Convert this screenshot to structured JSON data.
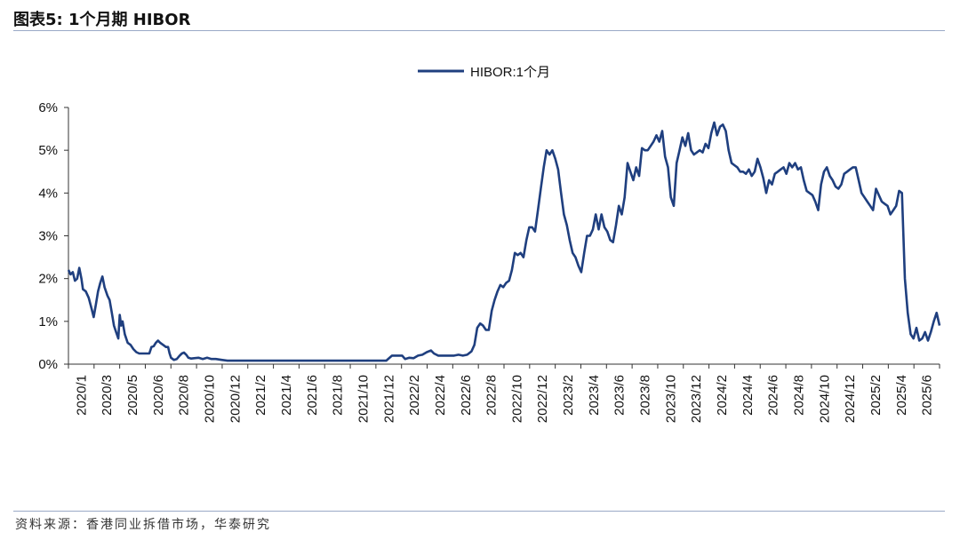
{
  "header": {
    "title": "图表5:  1个月期 HIBOR"
  },
  "footer": {
    "source": "资料来源：香港同业拆借市场，华泰研究"
  },
  "chart_data": {
    "type": "line",
    "title": "",
    "xlabel": "",
    "ylabel": "",
    "ylim": [
      0,
      6
    ],
    "y_ticks": [
      "0%",
      "1%",
      "2%",
      "3%",
      "4%",
      "5%",
      "6%"
    ],
    "x_ticks": [
      "2020/1",
      "2020/3",
      "2020/5",
      "2020/6",
      "2020/8",
      "2020/10",
      "2020/12",
      "2021/2",
      "2021/4",
      "2021/6",
      "2021/8",
      "2021/10",
      "2021/12",
      "2022/2",
      "2022/4",
      "2022/6",
      "2022/8",
      "2022/10",
      "2022/12",
      "2023/2",
      "2023/4",
      "2023/6",
      "2023/8",
      "2023/10",
      "2023/12",
      "2024/2",
      "2024/4",
      "2024/6",
      "2024/8",
      "2024/10",
      "2024/12",
      "2025/2",
      "2025/4",
      "2025/6"
    ],
    "legend": {
      "position": "top-center",
      "entries": [
        "HIBOR:1个月"
      ]
    },
    "grid": false,
    "colors": {
      "line": "#1f3f7f",
      "axis": "#333333"
    },
    "series": [
      {
        "name": "HIBOR:1个月",
        "x_unit": "months since 2020/1",
        "points": [
          [
            0,
            2.2
          ],
          [
            0.15,
            2.1
          ],
          [
            0.3,
            2.15
          ],
          [
            0.45,
            1.95
          ],
          [
            0.6,
            2.0
          ],
          [
            0.75,
            2.25
          ],
          [
            0.9,
            2.0
          ],
          [
            1.0,
            1.75
          ],
          [
            1.2,
            1.7
          ],
          [
            1.4,
            1.55
          ],
          [
            1.6,
            1.3
          ],
          [
            1.75,
            1.1
          ],
          [
            1.9,
            1.4
          ],
          [
            2.05,
            1.7
          ],
          [
            2.2,
            1.9
          ],
          [
            2.35,
            2.05
          ],
          [
            2.5,
            1.8
          ],
          [
            2.7,
            1.6
          ],
          [
            2.85,
            1.5
          ],
          [
            3.0,
            1.2
          ],
          [
            3.15,
            0.9
          ],
          [
            3.3,
            0.75
          ],
          [
            3.45,
            0.6
          ],
          [
            3.55,
            1.15
          ],
          [
            3.65,
            0.9
          ],
          [
            3.75,
            1.0
          ],
          [
            3.9,
            0.7
          ],
          [
            4.1,
            0.5
          ],
          [
            4.3,
            0.45
          ],
          [
            4.5,
            0.35
          ],
          [
            4.7,
            0.28
          ],
          [
            4.9,
            0.25
          ],
          [
            5.1,
            0.25
          ],
          [
            5.4,
            0.25
          ],
          [
            5.6,
            0.25
          ],
          [
            5.75,
            0.4
          ],
          [
            5.9,
            0.42
          ],
          [
            6.05,
            0.5
          ],
          [
            6.2,
            0.55
          ],
          [
            6.35,
            0.5
          ],
          [
            6.55,
            0.45
          ],
          [
            6.75,
            0.4
          ],
          [
            6.9,
            0.4
          ],
          [
            7.0,
            0.25
          ],
          [
            7.1,
            0.15
          ],
          [
            7.3,
            0.1
          ],
          [
            7.5,
            0.12
          ],
          [
            7.7,
            0.2
          ],
          [
            7.85,
            0.25
          ],
          [
            8.0,
            0.27
          ],
          [
            8.15,
            0.22
          ],
          [
            8.3,
            0.15
          ],
          [
            8.5,
            0.13
          ],
          [
            8.7,
            0.14
          ],
          [
            9.0,
            0.15
          ],
          [
            9.3,
            0.12
          ],
          [
            9.6,
            0.15
          ],
          [
            9.9,
            0.12
          ],
          [
            10.2,
            0.12
          ],
          [
            10.6,
            0.1
          ],
          [
            11.0,
            0.08
          ],
          [
            11.5,
            0.08
          ],
          [
            12.0,
            0.08
          ],
          [
            12.5,
            0.08
          ],
          [
            13.0,
            0.08
          ],
          [
            13.5,
            0.08
          ],
          [
            14.0,
            0.08
          ],
          [
            14.5,
            0.08
          ],
          [
            15.0,
            0.08
          ],
          [
            15.5,
            0.08
          ],
          [
            16.0,
            0.08
          ],
          [
            16.5,
            0.08
          ],
          [
            17.0,
            0.08
          ],
          [
            17.5,
            0.08
          ],
          [
            18.0,
            0.08
          ],
          [
            18.5,
            0.08
          ],
          [
            19.0,
            0.08
          ],
          [
            19.5,
            0.08
          ],
          [
            20.0,
            0.08
          ],
          [
            20.5,
            0.08
          ],
          [
            21.0,
            0.08
          ],
          [
            21.5,
            0.08
          ],
          [
            22.0,
            0.08
          ],
          [
            22.4,
            0.2
          ],
          [
            22.8,
            0.2
          ],
          [
            23.1,
            0.2
          ],
          [
            23.3,
            0.12
          ],
          [
            23.6,
            0.15
          ],
          [
            23.9,
            0.14
          ],
          [
            24.2,
            0.2
          ],
          [
            24.5,
            0.22
          ],
          [
            24.8,
            0.28
          ],
          [
            25.1,
            0.32
          ],
          [
            25.3,
            0.25
          ],
          [
            25.6,
            0.2
          ],
          [
            26.0,
            0.2
          ],
          [
            26.4,
            0.2
          ],
          [
            26.7,
            0.2
          ],
          [
            27.0,
            0.22
          ],
          [
            27.3,
            0.2
          ],
          [
            27.6,
            0.22
          ],
          [
            27.9,
            0.3
          ],
          [
            28.1,
            0.45
          ],
          [
            28.3,
            0.85
          ],
          [
            28.5,
            0.95
          ],
          [
            28.7,
            0.9
          ],
          [
            28.9,
            0.8
          ],
          [
            29.1,
            0.8
          ],
          [
            29.3,
            1.25
          ],
          [
            29.5,
            1.5
          ],
          [
            29.7,
            1.7
          ],
          [
            29.9,
            1.85
          ],
          [
            30.1,
            1.8
          ],
          [
            30.3,
            1.9
          ],
          [
            30.5,
            1.95
          ],
          [
            30.7,
            2.2
          ],
          [
            30.9,
            2.6
          ],
          [
            31.1,
            2.55
          ],
          [
            31.3,
            2.6
          ],
          [
            31.5,
            2.5
          ],
          [
            31.7,
            2.9
          ],
          [
            31.9,
            3.2
          ],
          [
            32.1,
            3.2
          ],
          [
            32.3,
            3.1
          ],
          [
            32.5,
            3.6
          ],
          [
            32.7,
            4.1
          ],
          [
            32.9,
            4.6
          ],
          [
            33.1,
            5.0
          ],
          [
            33.3,
            4.9
          ],
          [
            33.5,
            5.0
          ],
          [
            33.7,
            4.8
          ],
          [
            33.9,
            4.55
          ],
          [
            34.1,
            4.0
          ],
          [
            34.3,
            3.5
          ],
          [
            34.5,
            3.25
          ],
          [
            34.7,
            2.9
          ],
          [
            34.9,
            2.6
          ],
          [
            35.1,
            2.5
          ],
          [
            35.3,
            2.3
          ],
          [
            35.5,
            2.15
          ],
          [
            35.7,
            2.6
          ],
          [
            35.9,
            3.0
          ],
          [
            36.1,
            3.0
          ],
          [
            36.3,
            3.15
          ],
          [
            36.5,
            3.5
          ],
          [
            36.7,
            3.15
          ],
          [
            36.9,
            3.5
          ],
          [
            37.1,
            3.2
          ],
          [
            37.3,
            3.1
          ],
          [
            37.5,
            2.9
          ],
          [
            37.7,
            2.85
          ],
          [
            37.9,
            3.25
          ],
          [
            38.1,
            3.7
          ],
          [
            38.3,
            3.5
          ],
          [
            38.5,
            3.9
          ],
          [
            38.7,
            4.7
          ],
          [
            38.9,
            4.5
          ],
          [
            39.1,
            4.3
          ],
          [
            39.3,
            4.6
          ],
          [
            39.5,
            4.4
          ],
          [
            39.7,
            5.05
          ],
          [
            39.9,
            5.0
          ],
          [
            40.1,
            5.0
          ],
          [
            40.3,
            5.1
          ],
          [
            40.5,
            5.2
          ],
          [
            40.7,
            5.35
          ],
          [
            40.9,
            5.2
          ],
          [
            41.1,
            5.45
          ],
          [
            41.3,
            4.85
          ],
          [
            41.5,
            4.6
          ],
          [
            41.7,
            3.9
          ],
          [
            41.9,
            3.7
          ],
          [
            42.1,
            4.7
          ],
          [
            42.3,
            5.0
          ],
          [
            42.5,
            5.3
          ],
          [
            42.7,
            5.1
          ],
          [
            42.9,
            5.4
          ],
          [
            43.1,
            5.0
          ],
          [
            43.3,
            4.9
          ],
          [
            43.5,
            4.95
          ],
          [
            43.7,
            5.0
          ],
          [
            43.9,
            4.95
          ],
          [
            44.1,
            5.15
          ],
          [
            44.3,
            5.05
          ],
          [
            44.5,
            5.4
          ],
          [
            44.7,
            5.65
          ],
          [
            44.9,
            5.35
          ],
          [
            45.1,
            5.55
          ],
          [
            45.3,
            5.6
          ],
          [
            45.5,
            5.45
          ],
          [
            45.7,
            5.0
          ],
          [
            45.9,
            4.7
          ],
          [
            46.1,
            4.65
          ],
          [
            46.3,
            4.6
          ],
          [
            46.5,
            4.5
          ],
          [
            46.7,
            4.5
          ],
          [
            46.9,
            4.45
          ],
          [
            47.1,
            4.55
          ],
          [
            47.3,
            4.4
          ],
          [
            47.5,
            4.5
          ],
          [
            47.7,
            4.8
          ],
          [
            47.9,
            4.6
          ],
          [
            48.1,
            4.35
          ],
          [
            48.3,
            4.0
          ],
          [
            48.5,
            4.3
          ],
          [
            48.7,
            4.2
          ],
          [
            48.9,
            4.45
          ],
          [
            49.1,
            4.5
          ],
          [
            49.3,
            4.55
          ],
          [
            49.5,
            4.6
          ],
          [
            49.7,
            4.45
          ],
          [
            49.9,
            4.7
          ],
          [
            50.1,
            4.6
          ],
          [
            50.3,
            4.7
          ],
          [
            50.5,
            4.55
          ],
          [
            50.7,
            4.6
          ],
          [
            50.9,
            4.3
          ],
          [
            51.1,
            4.05
          ],
          [
            51.3,
            4.0
          ],
          [
            51.5,
            3.95
          ],
          [
            51.7,
            3.8
          ],
          [
            51.9,
            3.6
          ],
          [
            52.1,
            4.2
          ],
          [
            52.3,
            4.5
          ],
          [
            52.5,
            4.6
          ],
          [
            52.7,
            4.4
          ],
          [
            52.9,
            4.3
          ],
          [
            53.1,
            4.15
          ],
          [
            53.3,
            4.1
          ],
          [
            53.5,
            4.2
          ],
          [
            53.7,
            4.45
          ],
          [
            53.9,
            4.5
          ],
          [
            54.1,
            4.55
          ],
          [
            54.3,
            4.6
          ],
          [
            54.5,
            4.6
          ],
          [
            54.7,
            4.3
          ],
          [
            54.9,
            4.0
          ],
          [
            55.1,
            3.9
          ],
          [
            55.3,
            3.8
          ],
          [
            55.5,
            3.7
          ],
          [
            55.7,
            3.6
          ],
          [
            55.9,
            4.1
          ],
          [
            56.1,
            3.95
          ],
          [
            56.3,
            3.8
          ],
          [
            56.5,
            3.75
          ],
          [
            56.7,
            3.7
          ],
          [
            56.9,
            3.5
          ],
          [
            57.1,
            3.6
          ],
          [
            57.3,
            3.7
          ],
          [
            57.5,
            4.05
          ],
          [
            57.7,
            4.0
          ],
          [
            57.9,
            2.0
          ],
          [
            58.1,
            1.2
          ],
          [
            58.3,
            0.7
          ],
          [
            58.5,
            0.6
          ],
          [
            58.7,
            0.85
          ],
          [
            58.9,
            0.55
          ],
          [
            59.1,
            0.6
          ],
          [
            59.3,
            0.75
          ],
          [
            59.5,
            0.55
          ],
          [
            59.7,
            0.75
          ],
          [
            59.9,
            1.0
          ],
          [
            60.1,
            1.2
          ],
          [
            60.3,
            0.9
          ]
        ]
      }
    ]
  }
}
